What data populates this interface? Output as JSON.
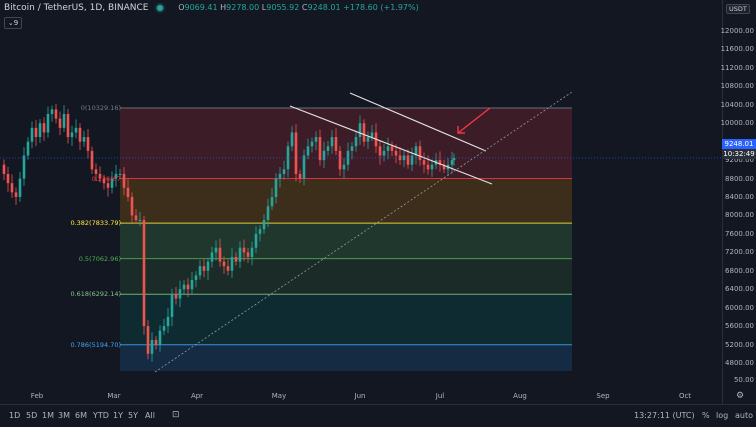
{
  "header": {
    "pair": "Bitcoin / TetherUS",
    "interval": "1D",
    "exchange": "BINANCE",
    "open_label": "O",
    "open": "9069.41",
    "high_label": "H",
    "high": "9278.00",
    "low_label": "L",
    "low": "9055.92",
    "close_label": "C",
    "close": "9248.01",
    "change": "+178.60 (+1.97%)",
    "indicator_count": "9"
  },
  "price_axis": {
    "currency": "USDT",
    "ticks": [
      "12000.00",
      "11600.00",
      "11200.00",
      "10800.00",
      "10400.00",
      "10000.00",
      "9600.00",
      "9200.00",
      "8800.00",
      "8400.00",
      "8000.00",
      "7600.00",
      "7200.00",
      "6800.00",
      "6400.00",
      "6000.00",
      "5600.00",
      "5200.00",
      "4800.00",
      "50.00"
    ],
    "current_price": "9248.01",
    "countdown": "10:32:49",
    "top_right_glyph": "0"
  },
  "time_axis": {
    "ticks": [
      "Feb",
      "Mar",
      "Apr",
      "May",
      "Jun",
      "Jul",
      "Aug",
      "Sep",
      "Oct"
    ]
  },
  "fibonacci": [
    {
      "level": "0(10329.16)",
      "price": 10329.16,
      "color": "#787b86"
    },
    {
      "level": "0.236(87",
      "price": 8800,
      "color": "#f23645"
    },
    {
      "level": "0.382(7833.79)",
      "price": 7833.79,
      "color": "#ffeb3b"
    },
    {
      "level": "0.5(7062.96)",
      "price": 7062.96,
      "color": "#4caf50"
    },
    {
      "level": "0.618(6292.14)",
      "price": 6292.14,
      "color": "#81c784"
    },
    {
      "level": "0.786(5194.70)",
      "price": 5194.7,
      "color": "#42a5f5"
    }
  ],
  "toolbar": {
    "timeframes": [
      "1D",
      "5D",
      "1M",
      "3M",
      "6M",
      "YTD",
      "1Y",
      "5Y",
      "All"
    ],
    "clock": "13:27:11 (UTC)",
    "percent": "%",
    "log": "log",
    "auto": "auto"
  },
  "colors": {
    "background": "#131722",
    "up": "#26a69a",
    "down": "#ef5350",
    "channel": "#ffffff",
    "arrow": "#f23645"
  }
}
